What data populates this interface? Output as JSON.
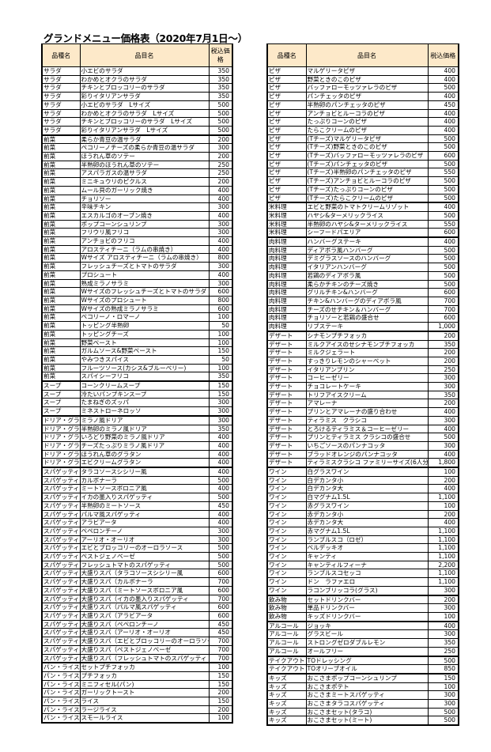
{
  "title": "グランドメニュー価格表（2020年7月1日～）",
  "headers": {
    "category": "品種名",
    "item": "品目名",
    "price": "税込価格"
  },
  "colors": {
    "header_bg": "#fde9c9"
  },
  "left": [
    {
      "category": "サラダ",
      "items": [
        [
          "小エビのサラダ",
          "350"
        ],
        [
          "わかめとオクラのサラダ",
          "350"
        ],
        [
          "チキンとブロッコリーのサラダ",
          "350"
        ],
        [
          "彩りイタリアンサラダ",
          "350"
        ],
        [
          "小エビのサラダ　Lサイズ",
          "500"
        ],
        [
          "わかめとオクラのサラダ　Lサイズ",
          "500"
        ],
        [
          "チキンとブロッコリーのサラダ　Lサイズ",
          "500"
        ],
        [
          "彩りイタリアンサラダ　Lサイズ",
          "500"
        ]
      ]
    },
    {
      "category": "前菜",
      "items": [
        [
          "柔らか青豆の温サラダ",
          "200"
        ],
        [
          "ペコリーノチーズの柔らか青豆の温サラダ",
          "300"
        ],
        [
          "ほうれん草のソテー",
          "200"
        ],
        [
          "半熟卵のほうれん草のソテー",
          "250"
        ],
        [
          "アスパラガスの温サラダ",
          "250"
        ],
        [
          "ミニキュウリのピクルス",
          "200"
        ],
        [
          "ムール貝のガーリック焼き",
          "400"
        ],
        [
          "チョリソー",
          "400"
        ],
        [
          "辛味チキン",
          "300"
        ],
        [
          "エスカルゴのオーブン焼き",
          "400"
        ],
        [
          "ポップコーンシュリンプ",
          "300"
        ],
        [
          "フリウリ風フリコ",
          "300"
        ],
        [
          "アンチョビのフリコ",
          "400"
        ],
        [
          "アロスティチーニ（ラムの串焼き）",
          "400"
        ],
        [
          "Wサイズ アロスティチーニ（ラムの串焼き）",
          "800"
        ],
        [
          "フレッシュチーズとトマトのサラダ",
          "300"
        ],
        [
          "プロシュート",
          "400"
        ],
        [
          "熟成ミラノサラミ",
          "300"
        ],
        [
          "Wサイズのフレッシュチーズとトマトのサラダ",
          "600"
        ],
        [
          "Wサイズのプロシュート",
          "800"
        ],
        [
          "Wサイズの熟成ミラノサラミ",
          "600"
        ],
        [
          "ペコリーノ・ロマーノ",
          "100"
        ],
        [
          "トッピング半熟卵",
          "50"
        ],
        [
          "トッピングチーズ",
          "100"
        ],
        [
          "野菜ペースト",
          "100"
        ],
        [
          "ガルムソース&野菜ペースト",
          "150"
        ],
        [
          "やみつきスパイス",
          "50"
        ],
        [
          "フルーツソース(カシス&ブルーベリー)",
          "100"
        ],
        [
          "スパイシーフリコ",
          "350"
        ]
      ]
    },
    {
      "category": "スープ",
      "items": [
        [
          "コーンクリームスープ",
          "150"
        ],
        [
          "冷たいパンプキンスープ",
          "150"
        ],
        [
          "たまねぎのズッパ",
          "300"
        ],
        [
          "ミネストローネロッソ",
          "300"
        ]
      ]
    },
    {
      "category": "ドリア・グラタン",
      "items": [
        [
          "ミラノ風ドリア",
          "300"
        ],
        [
          "半熟卵のミラノ風ドリア",
          "350"
        ],
        [
          "いろどり野菜のミラノ風ドリア",
          "400"
        ],
        [
          "チーズたっぷりミラノ風ドリア",
          "400"
        ],
        [
          "ほうれん草のグラタン",
          "400"
        ],
        [
          "エビクリームグラタン",
          "400"
        ]
      ]
    },
    {
      "category": "スパゲッティ",
      "items": [
        [
          "タラコソースシシリー風",
          "400"
        ],
        [
          "カルボナーラ",
          "500"
        ],
        [
          "ミートソースボロニア風",
          "400"
        ],
        [
          "イカの墨入りスパゲッティ",
          "500"
        ],
        [
          "半熟卵のミートソース",
          "450"
        ],
        [
          "パルマ風スパゲッティ",
          "400"
        ],
        [
          "アラビアータ",
          "400"
        ],
        [
          "ペペロンチーノ",
          "300"
        ],
        [
          "アーリオ・オーリオ",
          "300"
        ],
        [
          "エビとブロッコリーのオーロラソース",
          "500"
        ],
        [
          "ペストジェノベーゼ",
          "500"
        ],
        [
          "フレッシュトマトのスパゲッティ",
          "500"
        ],
        [
          "大盛りスパ（タラコソースシシリー風",
          "600"
        ],
        [
          "大盛りスパ（カルボナーラ",
          "700"
        ],
        [
          "大盛りスパ（ミートソースボロニア風",
          "600"
        ],
        [
          "大盛りスパ（イカの墨入りスパゲッティ",
          "700"
        ],
        [
          "大盛りスパ（パルマ風スパゲッティ",
          "600"
        ],
        [
          "大盛りスパ（アラビアータ",
          "600"
        ],
        [
          "大盛りスパ（ペペロンチーノ",
          "450"
        ],
        [
          "大盛りスパ（アーリオ・オーリオ",
          "450"
        ],
        [
          "大盛りスパ（エビとブロッコリーのオーロラソース",
          "700"
        ],
        [
          "大盛りスパ（ペストジェノベーゼ",
          "700"
        ],
        [
          "大盛りスパ（フレッシュトマトのスパゲッティ",
          "700"
        ]
      ]
    },
    {
      "category": "パン・ライス",
      "items": [
        [
          "セットプチフォッカ",
          "100"
        ],
        [
          "プチフォッカ",
          "150"
        ],
        [
          "ミニフィセル(パン)",
          "150"
        ],
        [
          "ガーリックトースト",
          "200"
        ],
        [
          "ライス",
          "150"
        ],
        [
          "ラージライス",
          "200"
        ],
        [
          "スモールライス",
          "100"
        ]
      ]
    }
  ],
  "right": [
    {
      "category": "ピザ",
      "items": [
        [
          "マルゲリータピザ",
          "400"
        ],
        [
          "野菜ときのこのピザ",
          "400"
        ],
        [
          "バッファローモッツァレラのピザ",
          "500"
        ],
        [
          "パンチェッタのピザ",
          "400"
        ],
        [
          "半熟卵のパンチェッタのピザ",
          "450"
        ],
        [
          "アンチョビとルーコラのピザ",
          "400"
        ],
        [
          "たっぷりコーンのピザ",
          "400"
        ],
        [
          "たらこクリームのピザ",
          "400"
        ],
        [
          "(Tチーズ)マルゲリータピザ",
          "500"
        ],
        [
          "(Tチーズ)野菜ときのこのピザ",
          "500"
        ],
        [
          "(Tチーズ)バッファローモッツァレラのピザ",
          "600"
        ],
        [
          "(Tチーズ)パンチェッタのピザ",
          "500"
        ],
        [
          "(Tチーズ)半熟卵のパンチェッタのピザ",
          "550"
        ],
        [
          "(Tチーズ)アンチョビとルーコラのピザ",
          "500"
        ],
        [
          "(Tチーズ)たっぷりコーンのピザ",
          "500"
        ],
        [
          "(Tチーズ)たらこクリームのピザ",
          "500"
        ]
      ]
    },
    {
      "category": "米料理",
      "items": [
        [
          "エビと野菜のトマトクリームリゾット",
          "400"
        ],
        [
          "ハヤシ&ターメリックライス",
          "500"
        ],
        [
          "半熟卵のハヤシ&ターメリックライス",
          "550"
        ],
        [
          "シーフードパエリア",
          "600"
        ]
      ]
    },
    {
      "category": "肉料理",
      "items": [
        [
          "ハンバーグステーキ",
          "400"
        ],
        [
          "ディアボラ風ハンバーグ",
          "500"
        ],
        [
          "デミグラスソースのハンバーグ",
          "500"
        ],
        [
          "イタリアンハンバーグ",
          "500"
        ],
        [
          "若鶏のディアボラ風",
          "500"
        ],
        [
          "柔らかチキンのチーズ焼き",
          "500"
        ],
        [
          "グリルチキン&ハンバーグ",
          "600"
        ],
        [
          "チキン&ハンバーグのディアボラ風",
          "700"
        ],
        [
          "チーズのせチキン＆ハンバーグ",
          "700"
        ],
        [
          "チョリソーと若鶏の盛合せ",
          "600"
        ],
        [
          "リブステーキ",
          "1,000"
        ]
      ]
    },
    {
      "category": "デザート",
      "items": [
        [
          "シナモンプチフォッカ",
          "200"
        ],
        [
          "ミルクアイスのせシナモンプチフォッカ",
          "350"
        ],
        [
          "ミルクジェラート",
          "200"
        ],
        [
          "すっきりレモンのシャーベット",
          "200"
        ],
        [
          "イタリアンプリン",
          "250"
        ],
        [
          "コーヒーゼリー",
          "300"
        ],
        [
          "チョコレートケーキ",
          "300"
        ],
        [
          "トリフアイスクリーム",
          "350"
        ],
        [
          "アマレーナ",
          "200"
        ],
        [
          "プリンとアマレーナの盛り合わせ",
          "400"
        ],
        [
          "ティラミス　クラシコ",
          "300"
        ],
        [
          "とろけるティラミス＆コーヒーゼリー",
          "400"
        ],
        [
          "プリンとティラミス クラシコの盛合せ",
          "500"
        ],
        [
          "いちごソースのパンナコッタ",
          "300"
        ],
        [
          "ブラッドオレンジのパンナコッタ",
          "400"
        ],
        [
          "ティラミスクラシコ ファミリーサイズ(6人分)",
          "1,800"
        ]
      ]
    },
    {
      "category": "ワイン",
      "items": [
        [
          "白グラスワイン",
          "100"
        ],
        [
          "白デカンタ小",
          "200"
        ],
        [
          "白デカンタ大",
          "400"
        ],
        [
          "白マグナム1.5L",
          "1,100"
        ],
        [
          "赤グラスワイン",
          "100"
        ],
        [
          "赤デカンタ小",
          "200"
        ],
        [
          "赤デカンタ大",
          "400"
        ],
        [
          "赤マグナム1.5L",
          "1,100"
        ],
        [
          "ランブルスコ（ロゼ）",
          "1,100"
        ],
        [
          "ベルデッキオ",
          "1,100"
        ],
        [
          "キャンティ",
          "1,100"
        ],
        [
          "キャンティルフィーナ",
          "2,200"
        ],
        [
          "ランブルスコセッコ",
          "1,100"
        ],
        [
          "ドン　ラファエロ",
          "1,100"
        ],
        [
          "ラコンブリッコラ(グラス)",
          "300"
        ]
      ]
    },
    {
      "category": "飲み物",
      "items": [
        [
          "セットドリンクバー",
          "200"
        ],
        [
          "単品ドリンクバー",
          "300"
        ],
        [
          "キッズドリンクバー",
          "100"
        ]
      ]
    },
    {
      "category": "アルコール",
      "items": [
        [
          "ジョッキ",
          "400"
        ],
        [
          "グラスビール",
          "300"
        ],
        [
          "ストロングゼロダブルレモン",
          "350"
        ],
        [
          "オールフリー",
          "250"
        ]
      ]
    },
    {
      "category": "テイクアウト",
      "items": [
        [
          "TOドレッシング",
          "500"
        ],
        [
          "TOオリーブオイル",
          "850"
        ]
      ]
    },
    {
      "category": "キッズ",
      "items": [
        [
          "おこさまポップコーンシュリンプ",
          "150"
        ],
        [
          "おこさまポテト",
          "100"
        ],
        [
          "おこさまミートスパゲッティ",
          "300"
        ],
        [
          "おこさまタラコスパゲッティ",
          "300"
        ],
        [
          "おこさまセット(タラコ)",
          "500"
        ],
        [
          "おこさまセット(ミート)",
          "500"
        ]
      ]
    }
  ]
}
